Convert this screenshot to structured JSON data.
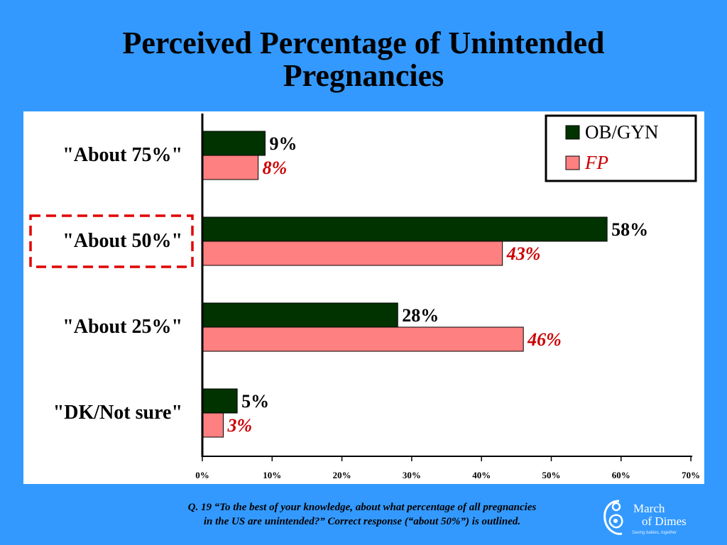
{
  "title": {
    "line1": "Perceived Percentage of Unintended",
    "line2": "Pregnancies"
  },
  "footnote": {
    "line1": "Q. 19  “To the best of your knowledge, about what percentage of all pregnancies",
    "line2": "in the US are unintended?”  Correct response (“about 50%”) is outlined."
  },
  "logo": {
    "line1": "March",
    "line2": "of Dimes",
    "tagline": "Saving babies, together",
    "icon": "mother-baby-icon"
  },
  "colors": {
    "background": "#3399ff",
    "obgyn": "#003300",
    "fp": "#ff8080",
    "fp_label": "#cc0000",
    "outline": "#e00000"
  },
  "chart_data": {
    "type": "bar",
    "orientation": "horizontal",
    "categories": [
      "\"About 75%\"",
      "\"About 50%\"",
      "\"About 25%\"",
      "\"DK/Not sure\""
    ],
    "series": [
      {
        "name": "OB/GYN",
        "values": [
          9,
          58,
          28,
          5
        ],
        "labels": [
          "9%",
          "58%",
          "28%",
          "5%"
        ]
      },
      {
        "name": "FP",
        "values": [
          8,
          43,
          46,
          3
        ],
        "labels": [
          "8%",
          "43%",
          "46%",
          "3%"
        ]
      }
    ],
    "xlim": [
      0,
      70
    ],
    "xticks": [
      "0%",
      "10%",
      "20%",
      "30%",
      "40%",
      "50%",
      "60%",
      "70%"
    ],
    "highlighted_category": "\"About 50%\"",
    "legend_position": "top-right",
    "grid": false
  }
}
